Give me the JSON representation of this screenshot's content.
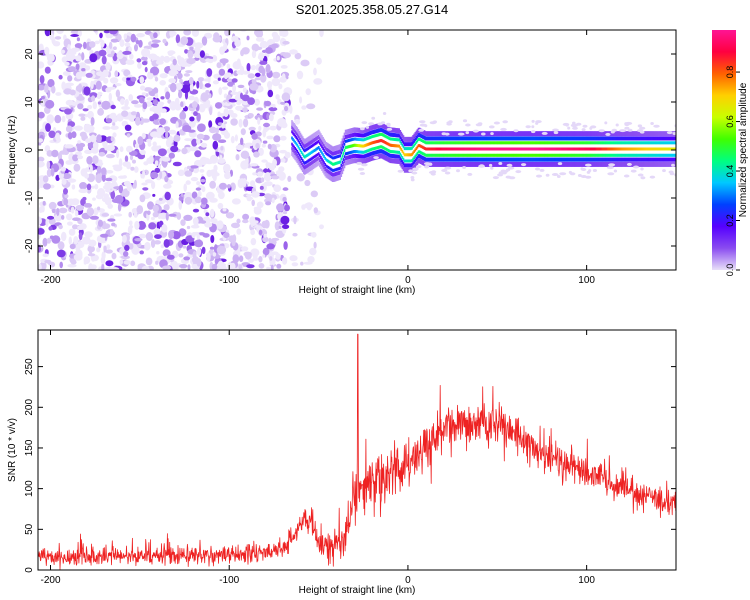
{
  "figure": {
    "title": "S201.2025.358.05.27.G14"
  },
  "chart_data": [
    {
      "type": "heatmap",
      "xlabel": "Height of straight line (km)",
      "ylabel": "Frequency (Hz)",
      "xlim": [
        -207,
        150
      ],
      "ylim": [
        -25,
        25
      ],
      "xticks": [
        -200,
        -100,
        0,
        100
      ],
      "xtick_labels": [
        "-200",
        "-100",
        "0",
        "100"
      ],
      "yticks": [
        -20,
        -10,
        0,
        10,
        20
      ],
      "ytick_labels": [
        "-20",
        "-10",
        "0",
        "10",
        "20"
      ],
      "colorbar": {
        "label": "Normalized spectral amplitude",
        "range": [
          0,
          0.97
        ],
        "ticks": [
          0,
          0.2,
          0.4,
          0.6,
          0.8
        ],
        "tick_labels": [
          "0.0",
          "0.2",
          "0.4",
          "0.6",
          "0.8"
        ],
        "colormap": [
          "#e8e0f8",
          "#8a4cf0",
          "#5500ff",
          "#0040ff",
          "#00c8ff",
          "#00ff80",
          "#40ff00",
          "#c8ff00",
          "#ffd000",
          "#ff6000",
          "#ff0040",
          "#ff1493"
        ]
      },
      "regions": [
        {
          "name": "noise",
          "x_range": [
            -207,
            -67
          ],
          "y_range": [
            -25,
            25
          ],
          "amplitude_range": [
            0.0,
            0.1
          ]
        },
        {
          "name": "sparse",
          "x_range": [
            -67,
            -48
          ],
          "y_range": [
            -25,
            25
          ],
          "amplitude_range": [
            0.0,
            0.06
          ]
        }
      ],
      "signal_track": [
        {
          "x": -65,
          "freq": 2.5,
          "amp": 0.3
        },
        {
          "x": -62,
          "freq": 1.0,
          "amp": 0.35
        },
        {
          "x": -58,
          "freq": -1.5,
          "amp": 0.4
        },
        {
          "x": -54,
          "freq": -0.5,
          "amp": 0.35
        },
        {
          "x": -50,
          "freq": 0.5,
          "amp": 0.3
        },
        {
          "x": -46,
          "freq": -2.0,
          "amp": 0.35
        },
        {
          "x": -42,
          "freq": -3.0,
          "amp": 0.45
        },
        {
          "x": -38,
          "freq": -2.5,
          "amp": 0.4
        },
        {
          "x": -35,
          "freq": 0.5,
          "amp": 0.45
        },
        {
          "x": -30,
          "freq": 1.0,
          "amp": 0.55
        },
        {
          "x": -25,
          "freq": 0.8,
          "amp": 0.7
        },
        {
          "x": -20,
          "freq": 1.5,
          "amp": 0.8
        },
        {
          "x": -15,
          "freq": 2.0,
          "amp": 0.85
        },
        {
          "x": -10,
          "freq": 1.0,
          "amp": 0.8
        },
        {
          "x": -5,
          "freq": 0.8,
          "amp": 0.75
        },
        {
          "x": -2,
          "freq": -1.0,
          "amp": 0.7
        },
        {
          "x": 2,
          "freq": -1.0,
          "amp": 0.75
        },
        {
          "x": 6,
          "freq": 1.0,
          "amp": 0.8
        },
        {
          "x": 10,
          "freq": 0.2,
          "amp": 0.85
        },
        {
          "x": 20,
          "freq": 0.2,
          "amp": 0.9
        },
        {
          "x": 40,
          "freq": 0.2,
          "amp": 0.95
        },
        {
          "x": 70,
          "freq": 0.2,
          "amp": 0.97
        },
        {
          "x": 100,
          "freq": 0.2,
          "amp": 0.9
        },
        {
          "x": 120,
          "freq": 0.2,
          "amp": 0.75
        },
        {
          "x": 150,
          "freq": 0.2,
          "amp": 0.65
        }
      ]
    },
    {
      "type": "line",
      "xlabel": "Height of straight line (km)",
      "ylabel": "SNR (10 * v/v)",
      "xlim": [
        -207,
        150
      ],
      "ylim": [
        0,
        295
      ],
      "xticks": [
        -200,
        -100,
        0,
        100
      ],
      "xtick_labels": [
        "-200",
        "-100",
        "0",
        "100"
      ],
      "yticks": [
        0,
        50,
        100,
        150,
        200,
        250
      ],
      "ytick_labels": [
        "0",
        "50",
        "100",
        "150",
        "200",
        "250"
      ],
      "series": [
        {
          "color": "#ee2222",
          "x": [
            -207,
            -200,
            -180,
            -160,
            -140,
            -120,
            -100,
            -90,
            -80,
            -70,
            -66,
            -62,
            -58,
            -54,
            -50,
            -45,
            -40,
            -37,
            -34,
            -32,
            -30,
            -28,
            -25,
            -20,
            -15,
            -10,
            -5,
            0,
            5,
            10,
            15,
            20,
            30,
            40,
            50,
            60,
            70,
            80,
            90,
            100,
            110,
            120,
            130,
            140,
            150
          ],
          "y": [
            15,
            15,
            16,
            17,
            17,
            18,
            19,
            20,
            22,
            25,
            35,
            55,
            65,
            55,
            35,
            25,
            35,
            40,
            45,
            70,
            95,
            100,
            100,
            105,
            110,
            118,
            125,
            130,
            140,
            150,
            160,
            168,
            175,
            182,
            178,
            165,
            150,
            138,
            128,
            120,
            110,
            100,
            92,
            85,
            80
          ],
          "noise_amplitude": [
            12,
            12,
            12,
            12,
            12,
            12,
            12,
            12,
            12,
            12,
            15,
            18,
            20,
            22,
            22,
            20,
            22,
            24,
            26,
            30,
            32,
            34,
            34,
            35,
            35,
            35,
            35,
            35,
            35,
            34,
            33,
            32,
            30,
            28,
            26,
            24,
            22,
            20,
            20,
            20,
            20,
            18,
            18,
            18,
            18
          ]
        }
      ],
      "spike": {
        "x": -28,
        "y": 290
      }
    }
  ]
}
